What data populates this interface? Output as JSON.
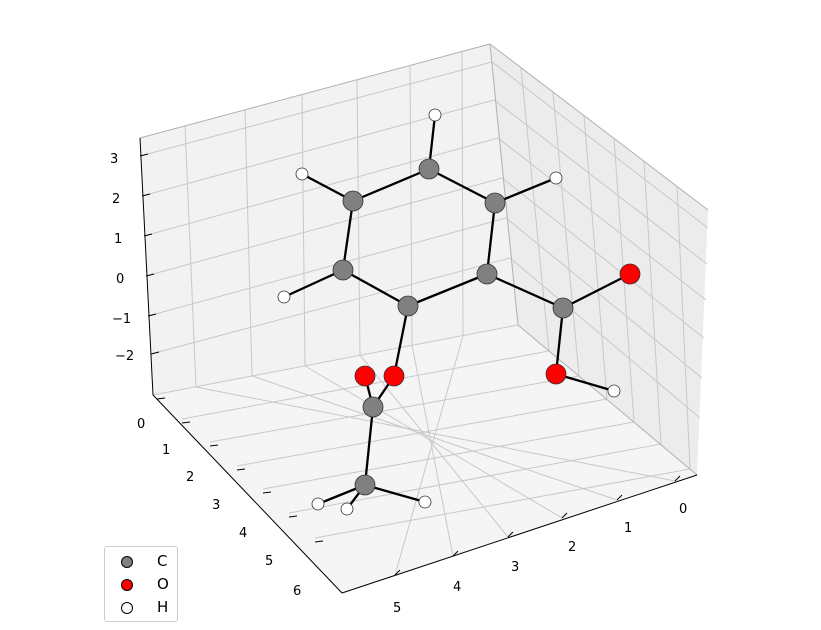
{
  "molecule": {
    "elements": {
      "C": {
        "label": "C",
        "color": "#808080"
      },
      "O": {
        "label": "O",
        "color": "#ff0000"
      },
      "H": {
        "label": "H",
        "color": "#ffffff"
      }
    },
    "bond_color": "#000000"
  },
  "axes": {
    "z_ticks": [
      "3",
      "2",
      "1",
      "0",
      "−1",
      "−2"
    ],
    "y_ticks": [
      "0",
      "1",
      "2",
      "3",
      "4",
      "5",
      "6"
    ],
    "x_ticks": [
      "0",
      "1",
      "2",
      "3",
      "4",
      "5"
    ]
  },
  "legend": {
    "items": [
      {
        "label": "C",
        "color": "#808080"
      },
      {
        "label": "O",
        "color": "#ff0000"
      },
      {
        "label": "H",
        "color": "#ffffff"
      }
    ]
  }
}
